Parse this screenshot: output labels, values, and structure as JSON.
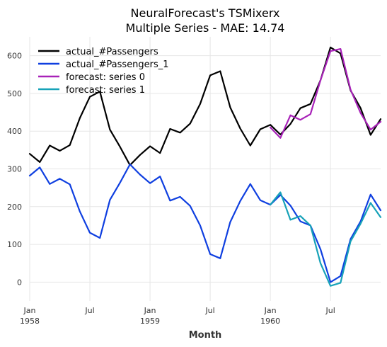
{
  "chart_data": {
    "type": "line",
    "title_line1": "NeuralForecast's TSMixerx",
    "title_line2": "Multiple Series - MAE: 14.74",
    "xlabel": "Month",
    "ylabel": "",
    "ylim": [
      -50,
      650
    ],
    "yticks": [
      0,
      100,
      200,
      300,
      400,
      500,
      600
    ],
    "xlim": [
      0,
      35
    ],
    "xticks": [
      {
        "x": 0,
        "l1": "Jan",
        "l2": "1958"
      },
      {
        "x": 6,
        "l1": "Jul",
        "l2": ""
      },
      {
        "x": 12,
        "l1": "Jan",
        "l2": "1959"
      },
      {
        "x": 18,
        "l1": "Jul",
        "l2": ""
      },
      {
        "x": 24,
        "l1": "Jan",
        "l2": "1960"
      },
      {
        "x": 30,
        "l1": "Jul",
        "l2": ""
      }
    ],
    "grid": true,
    "legend_position": "top-left",
    "series": [
      {
        "name": "actual_#Passengers",
        "color": "#000000",
        "x_start": 0,
        "values": [
          340,
          318,
          362,
          348,
          363,
          435,
          491,
          505,
          404,
          359,
          310,
          337,
          360,
          342,
          406,
          396,
          420,
          472,
          548,
          559,
          463,
          407,
          362,
          405,
          417,
          391,
          419,
          461,
          472,
          535,
          622,
          606,
          508,
          461,
          390,
          432
        ]
      },
      {
        "name": "actual_#Passengers_1",
        "color": "#0f3fe0",
        "x_start": 0,
        "values": [
          282,
          304,
          260,
          274,
          259,
          187,
          131,
          117,
          218,
          263,
          312,
          285,
          262,
          280,
          216,
          226,
          202,
          150,
          74,
          63,
          159,
          215,
          260,
          217,
          205,
          231,
          203,
          161,
          150,
          87,
          0,
          16,
          114,
          161,
          232,
          190
        ]
      },
      {
        "name": "forecast: series 0",
        "color": "#a822b8",
        "x_start": 24,
        "values": [
          410,
          382,
          442,
          430,
          445,
          535,
          612,
          618,
          510,
          448,
          404,
          425
        ]
      },
      {
        "name": "forecast: series 1",
        "color": "#17a2b8",
        "x_start": 24,
        "values": [
          205,
          238,
          165,
          175,
          150,
          50,
          -10,
          -2,
          108,
          155,
          210,
          172
        ]
      }
    ]
  }
}
